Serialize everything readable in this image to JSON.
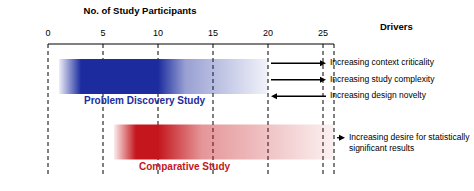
{
  "chart_data": {
    "type": "bar",
    "orientation": "horizontal",
    "title": "No. of Study Participants",
    "categories": [
      "Problem Discovery Study",
      "Comparative Study"
    ],
    "values": [
      [
        1,
        20
      ],
      [
        6,
        26
      ]
    ],
    "peak": [
      [
        3,
        10
      ],
      [
        8,
        10
      ]
    ],
    "colors": [
      "#1c2c9e",
      "#c4161c"
    ],
    "xlim": [
      0,
      26
    ],
    "xticks": [
      0,
      5,
      10,
      15,
      20,
      25
    ],
    "grid": true,
    "drivers": {
      "title": "Drivers",
      "items": [
        [
          {
            "text": "Increasing context criticality",
            "direction": "right"
          },
          {
            "text": "Increasing study complexity",
            "direction": "right"
          },
          {
            "text": "Increasing design novelty",
            "direction": "left"
          }
        ],
        [
          {
            "text": "Increasing desire for statistically significant results",
            "direction": "right"
          }
        ]
      ]
    }
  }
}
